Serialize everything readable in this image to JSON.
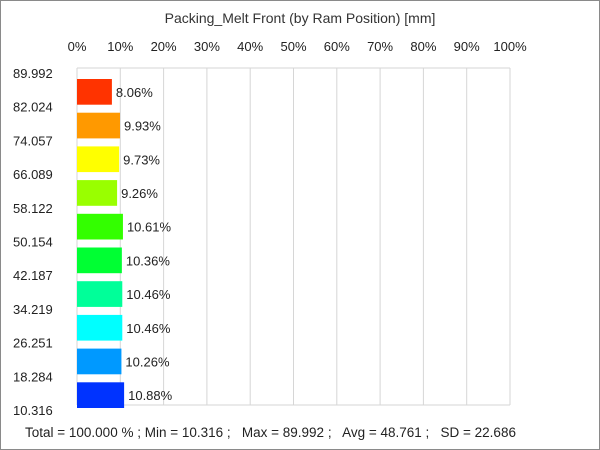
{
  "chart_data": {
    "type": "bar",
    "orientation": "horizontal",
    "title": "Packing_Melt Front (by Ram Position) [mm]",
    "x_ticks": [
      "0%",
      "10%",
      "20%",
      "30%",
      "40%",
      "50%",
      "60%",
      "70%",
      "80%",
      "90%",
      "100%"
    ],
    "xlim": [
      0,
      100
    ],
    "y_ticks": [
      "89.992",
      "82.024",
      "74.057",
      "66.089",
      "58.122",
      "50.154",
      "42.187",
      "34.219",
      "26.251",
      "18.284",
      "10.316"
    ],
    "grid": true,
    "bars": [
      {
        "value": 8.06,
        "label": "8.06%",
        "color": "#ff3300"
      },
      {
        "value": 9.93,
        "label": "9.93%",
        "color": "#ff9900"
      },
      {
        "value": 9.73,
        "label": "9.73%",
        "color": "#ffff00"
      },
      {
        "value": 9.26,
        "label": "9.26%",
        "color": "#99ff00"
      },
      {
        "value": 10.61,
        "label": "10.61%",
        "color": "#33ff00"
      },
      {
        "value": 10.36,
        "label": "10.36%",
        "color": "#00ff33"
      },
      {
        "value": 10.46,
        "label": "10.46%",
        "color": "#00ff99"
      },
      {
        "value": 10.46,
        "label": "10.46%",
        "color": "#00ffff"
      },
      {
        "value": 10.26,
        "label": "10.26%",
        "color": "#0099ff"
      },
      {
        "value": 10.88,
        "label": "10.88%",
        "color": "#0033ff"
      }
    ],
    "footer": "Total = 100.000 % ; Min = 10.316 ;   Max = 89.992 ;   Avg = 48.761 ;   SD = 22.686"
  }
}
